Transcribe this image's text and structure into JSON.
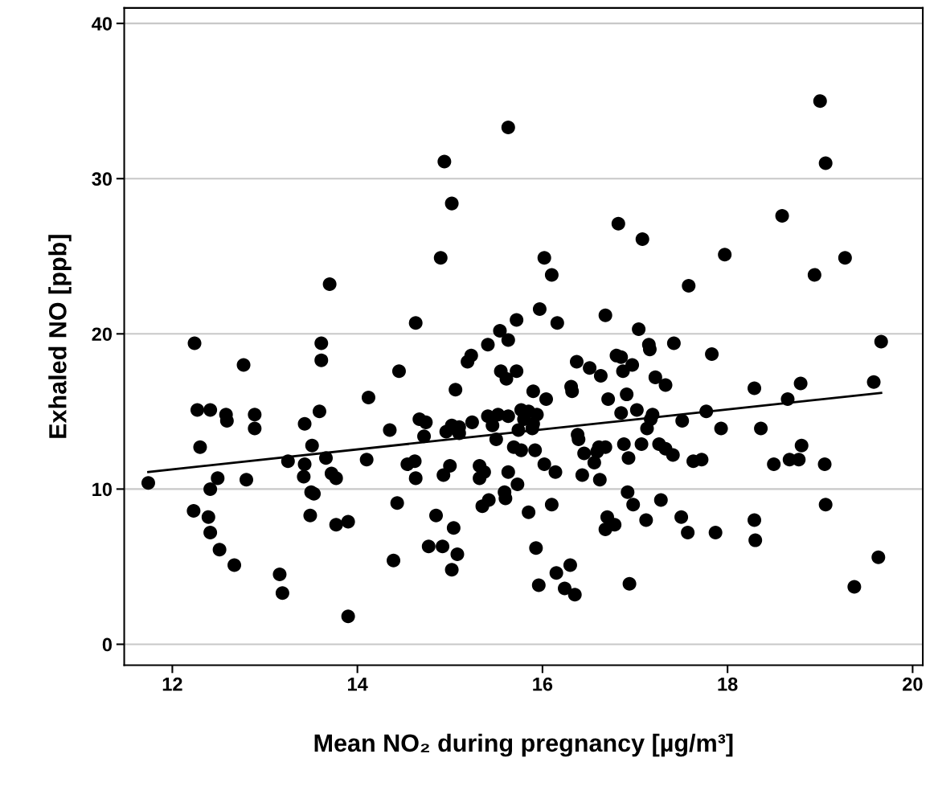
{
  "chart_data": {
    "type": "scatter",
    "xlabel": "Mean NO₂ during pregnancy [µg/m³]",
    "ylabel": "Exhaled NO [ppb]",
    "xlim": [
      11.48,
      20.11
    ],
    "xticks": [
      12,
      14,
      16,
      18,
      20
    ],
    "ylim": [
      -1.35,
      41
    ],
    "yticks": [
      0,
      10,
      20,
      30,
      40
    ],
    "grid": "y",
    "marker": "circle",
    "series": [
      {
        "color": "#000000",
        "x": [
          11.74,
          12.27,
          12.41,
          12.58,
          12.59,
          12.89,
          12.89,
          12.3,
          12.49,
          12.41,
          12.8,
          12.23,
          12.39,
          12.41,
          12.51,
          12.67,
          13.16,
          13.19,
          13.25,
          13.43,
          13.59,
          13.51,
          13.66,
          13.43,
          13.42,
          13.5,
          13.53,
          13.49,
          13.72,
          13.77,
          13.77,
          13.9,
          13.9,
          14.12,
          14.1,
          14.35,
          14.43,
          14.39,
          14.67,
          14.74,
          14.72,
          14.54,
          14.62,
          14.63,
          14.85,
          14.77,
          14.92,
          15.04,
          15.08,
          15.02,
          15.06,
          15.0,
          14.93,
          15.02,
          14.96,
          15.1,
          15.1,
          15.24,
          15.32,
          15.35,
          15.32,
          14.94,
          15.02,
          14.9,
          13.7,
          14.63,
          12.24,
          12.77,
          13.61,
          13.61,
          14.45,
          15.19,
          15.23,
          15.63,
          19.06,
          16.82,
          17.08,
          18.59,
          16.02,
          16.1,
          17.97,
          18.94,
          19.27,
          17.58,
          15.97,
          15.72,
          16.16,
          16.68,
          17.04,
          15.54,
          15.63,
          15.41,
          17.42,
          17.83,
          16.37,
          16.51,
          16.63,
          15.55,
          15.61,
          15.72,
          16.8,
          16.85,
          16.97,
          16.87,
          17.15,
          17.16,
          17.22,
          17.33,
          18.29,
          18.79,
          15.9,
          16.04,
          16.31,
          16.32,
          16.71,
          16.91,
          18.65,
          17.02,
          16.85,
          17.77,
          17.51,
          17.93,
          18.36,
          15.41,
          15.52,
          15.46,
          15.63,
          15.77,
          15.85,
          15.94,
          15.8,
          15.9,
          15.74,
          15.89,
          15.5,
          17.19,
          17.17,
          17.13,
          16.38,
          16.39,
          15.69,
          15.77,
          15.92,
          16.45,
          16.61,
          16.68,
          16.59,
          16.88,
          17.07,
          17.26,
          17.33,
          17.41,
          16.93,
          16.56,
          17.63,
          17.72,
          18.5,
          18.67,
          18.77,
          18.8,
          19.05,
          15.37,
          15.63,
          16.02,
          16.14,
          16.43,
          16.62,
          15.73,
          15.59,
          15.6,
          15.42,
          15.85,
          16.1,
          16.92,
          16.98,
          17.28,
          19.06,
          16.7,
          16.78,
          16.68,
          17.12,
          17.5,
          17.57,
          17.87,
          18.29,
          18.3,
          15.93,
          16.3,
          16.15,
          15.96,
          16.24,
          16.35,
          16.94,
          19.37,
          19.0,
          19.66,
          19.58,
          19.63
        ],
        "values": [
          10.4,
          15.1,
          15.1,
          14.8,
          14.4,
          14.8,
          13.9,
          12.7,
          10.7,
          10.0,
          10.6,
          8.6,
          8.2,
          7.2,
          6.1,
          5.1,
          4.5,
          3.3,
          11.8,
          14.2,
          15.0,
          12.8,
          12.0,
          11.6,
          10.8,
          9.8,
          9.7,
          8.3,
          11.0,
          10.7,
          7.7,
          7.9,
          1.8,
          15.9,
          11.9,
          13.8,
          9.1,
          5.4,
          14.5,
          14.3,
          13.4,
          11.6,
          11.8,
          10.7,
          8.3,
          6.3,
          6.3,
          7.5,
          5.8,
          4.8,
          16.4,
          11.5,
          10.9,
          14.1,
          13.7,
          14.0,
          13.6,
          14.3,
          11.5,
          8.9,
          10.7,
          31.1,
          28.4,
          24.9,
          23.2,
          20.7,
          19.4,
          18.0,
          19.4,
          18.3,
          17.6,
          18.2,
          18.6,
          33.3,
          31.0,
          27.1,
          26.1,
          27.6,
          24.9,
          23.8,
          25.1,
          23.8,
          24.9,
          23.1,
          21.6,
          20.9,
          20.7,
          21.2,
          20.3,
          20.2,
          19.6,
          19.3,
          19.4,
          18.7,
          18.2,
          17.8,
          17.3,
          17.6,
          17.1,
          17.6,
          18.6,
          18.5,
          18.0,
          17.6,
          19.3,
          19.0,
          17.2,
          16.7,
          16.5,
          16.8,
          16.3,
          15.8,
          16.6,
          16.3,
          15.8,
          16.1,
          15.8,
          15.1,
          14.9,
          15.0,
          14.4,
          13.9,
          13.9,
          14.7,
          14.8,
          14.1,
          14.7,
          15.1,
          15.0,
          14.8,
          14.5,
          14.2,
          13.8,
          13.9,
          13.2,
          14.8,
          14.5,
          13.9,
          13.5,
          13.2,
          12.7,
          12.5,
          12.5,
          12.3,
          12.7,
          12.7,
          12.4,
          12.9,
          12.9,
          12.9,
          12.6,
          12.2,
          12.0,
          11.7,
          11.8,
          11.9,
          11.6,
          11.9,
          11.9,
          12.8,
          11.6,
          11.1,
          11.1,
          11.6,
          11.1,
          10.9,
          10.6,
          10.3,
          9.8,
          9.4,
          9.3,
          8.5,
          9.0,
          9.8,
          9.0,
          9.3,
          9.0,
          8.2,
          7.7,
          7.4,
          8.0,
          8.2,
          7.2,
          7.2,
          8.0,
          6.7,
          6.2,
          5.1,
          4.6,
          3.8,
          3.6,
          3.2,
          3.9,
          3.7,
          35.0,
          19.5,
          16.9,
          5.6
        ]
      },
      {
        "type": "line",
        "marker": "none",
        "color": "#000000",
        "x": [
          11.74,
          19.66
        ],
        "values": [
          11.1,
          16.2
        ]
      }
    ]
  }
}
